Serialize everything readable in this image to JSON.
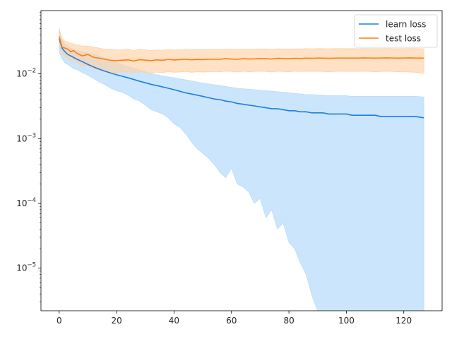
{
  "chart_data": {
    "type": "line",
    "title": "",
    "xlabel": "",
    "ylabel": "",
    "xlim": [
      -6.35,
      133.35
    ],
    "ylim": [
      2.2e-06,
      0.095
    ],
    "yscale": "log",
    "grid": false,
    "legend_position": "top-right",
    "x_ticks": [
      0,
      20,
      40,
      60,
      80,
      100,
      120
    ],
    "x_tick_labels": [
      "0",
      "20",
      "40",
      "60",
      "80",
      "100",
      "120"
    ],
    "y_ticks": [
      1e-05,
      0.0001,
      0.001,
      0.01
    ],
    "y_tick_labels": [
      {
        "base": "10",
        "exp": "−5"
      },
      {
        "base": "10",
        "exp": "−4"
      },
      {
        "base": "10",
        "exp": "−3"
      },
      {
        "base": "10",
        "exp": "−2"
      }
    ],
    "series": [
      {
        "name": "learn loss",
        "color": "#1f7fe0",
        "band_color": "#b9dcfc",
        "x": [
          0,
          1,
          2,
          3,
          4,
          5,
          6,
          8,
          10,
          12,
          14,
          16,
          18,
          20,
          22,
          24,
          26,
          28,
          30,
          32,
          34,
          36,
          38,
          40,
          42,
          44,
          46,
          48,
          50,
          52,
          54,
          56,
          58,
          60,
          62,
          64,
          66,
          68,
          70,
          72,
          74,
          76,
          78,
          80,
          82,
          84,
          86,
          88,
          90,
          92,
          94,
          96,
          98,
          100,
          102,
          104,
          106,
          108,
          110,
          112,
          114,
          116,
          118,
          120,
          122,
          124,
          127
        ],
        "y": [
          0.035,
          0.025,
          0.022,
          0.02,
          0.019,
          0.018,
          0.017,
          0.0155,
          0.014,
          0.0128,
          0.0118,
          0.011,
          0.0103,
          0.0097,
          0.0092,
          0.0087,
          0.0082,
          0.0077,
          0.0073,
          0.0069,
          0.0066,
          0.0063,
          0.006,
          0.0057,
          0.0054,
          0.0051,
          0.0049,
          0.0047,
          0.0045,
          0.0043,
          0.0041,
          0.004,
          0.0038,
          0.0037,
          0.0035,
          0.0034,
          0.0033,
          0.0032,
          0.0031,
          0.003,
          0.0029,
          0.0029,
          0.0028,
          0.0027,
          0.0027,
          0.0026,
          0.0026,
          0.0025,
          0.0025,
          0.0025,
          0.0024,
          0.0024,
          0.0024,
          0.0024,
          0.0023,
          0.0023,
          0.0023,
          0.0023,
          0.0023,
          0.0022,
          0.0022,
          0.0022,
          0.0022,
          0.0022,
          0.0022,
          0.0022,
          0.0021
        ],
        "upper": [
          0.05,
          0.033,
          0.029,
          0.027,
          0.025,
          0.024,
          0.023,
          0.022,
          0.021,
          0.02,
          0.019,
          0.0175,
          0.016,
          0.0148,
          0.0138,
          0.013,
          0.0122,
          0.0115,
          0.0108,
          0.0102,
          0.0097,
          0.0093,
          0.009,
          0.0087,
          0.0084,
          0.0081,
          0.0078,
          0.0075,
          0.0072,
          0.007,
          0.0068,
          0.0066,
          0.0064,
          0.0062,
          0.006,
          0.0059,
          0.0058,
          0.0057,
          0.0056,
          0.0055,
          0.0054,
          0.0053,
          0.0052,
          0.0051,
          0.005,
          0.0049,
          0.0048,
          0.0048,
          0.0047,
          0.0047,
          0.0046,
          0.0046,
          0.0046,
          0.0046,
          0.0045,
          0.0045,
          0.0045,
          0.0045,
          0.0045,
          0.0045,
          0.0045,
          0.0045,
          0.0045,
          0.0045,
          0.0045,
          0.0045,
          0.0044
        ],
        "lower": [
          0.022,
          0.017,
          0.015,
          0.014,
          0.013,
          0.012,
          0.0118,
          0.0105,
          0.0095,
          0.0085,
          0.0075,
          0.0068,
          0.006,
          0.0055,
          0.0052,
          0.0047,
          0.0041,
          0.0038,
          0.0033,
          0.0028,
          0.0026,
          0.0024,
          0.0021,
          0.0017,
          0.0015,
          0.0012,
          0.0009,
          0.0007,
          0.0006,
          0.0005,
          0.0004,
          0.0003,
          0.00025,
          0.00035,
          0.0002,
          0.00018,
          0.00015,
          0.0001,
          0.00012,
          6e-05,
          8e-05,
          4e-05,
          5e-05,
          2.5e-05,
          2e-05,
          1.2e-05,
          8e-06,
          3.8e-06,
          2.2e-06,
          2.2e-06,
          2.2e-06,
          2.2e-06,
          2.2e-06,
          2.2e-06,
          2.2e-06,
          2.2e-06,
          2.2e-06,
          2.2e-06,
          2.2e-06,
          2.2e-06,
          2.2e-06,
          2.2e-06,
          2.2e-06,
          2.2e-06,
          2.2e-06,
          2.2e-06,
          2.2e-06
        ]
      },
      {
        "name": "test loss",
        "color": "#ff7f0e",
        "band_color": "#ffd1a6",
        "x": [
          0,
          1,
          2,
          3,
          4,
          5,
          6,
          8,
          10,
          12,
          14,
          16,
          18,
          20,
          22,
          24,
          26,
          28,
          30,
          32,
          34,
          36,
          38,
          40,
          42,
          44,
          46,
          48,
          50,
          52,
          54,
          56,
          58,
          60,
          62,
          64,
          66,
          68,
          70,
          72,
          74,
          76,
          78,
          80,
          82,
          84,
          86,
          88,
          90,
          92,
          94,
          96,
          98,
          100,
          102,
          104,
          106,
          108,
          110,
          112,
          114,
          116,
          118,
          120,
          122,
          124,
          127
        ],
        "y": [
          0.038,
          0.026,
          0.025,
          0.024,
          0.022,
          0.023,
          0.021,
          0.019,
          0.02,
          0.018,
          0.0175,
          0.0168,
          0.0162,
          0.016,
          0.0163,
          0.0165,
          0.0158,
          0.0166,
          0.0163,
          0.016,
          0.0165,
          0.0162,
          0.0168,
          0.0164,
          0.0166,
          0.0168,
          0.0165,
          0.0167,
          0.0166,
          0.0168,
          0.0169,
          0.0168,
          0.0172,
          0.017,
          0.0168,
          0.0172,
          0.017,
          0.0171,
          0.0173,
          0.0172,
          0.017,
          0.0174,
          0.0173,
          0.0172,
          0.0174,
          0.0173,
          0.0175,
          0.0174,
          0.0176,
          0.0175,
          0.0174,
          0.0175,
          0.0176,
          0.0175,
          0.0176,
          0.0175,
          0.0177,
          0.0176,
          0.0175,
          0.0176,
          0.0177,
          0.0176,
          0.0175,
          0.0176,
          0.0177,
          0.0176,
          0.0175
        ],
        "upper": [
          0.05,
          0.035,
          0.032,
          0.031,
          0.03,
          0.029,
          0.028,
          0.027,
          0.027,
          0.026,
          0.025,
          0.024,
          0.024,
          0.0235,
          0.0235,
          0.024,
          0.023,
          0.024,
          0.0235,
          0.023,
          0.0235,
          0.0232,
          0.0238,
          0.0233,
          0.0236,
          0.0238,
          0.0235,
          0.0237,
          0.0236,
          0.0238,
          0.024,
          0.0238,
          0.0242,
          0.024,
          0.0238,
          0.0242,
          0.024,
          0.0241,
          0.0243,
          0.0242,
          0.024,
          0.0244,
          0.0243,
          0.0242,
          0.0244,
          0.0243,
          0.0245,
          0.0244,
          0.0246,
          0.0245,
          0.0244,
          0.0245,
          0.0246,
          0.0245,
          0.0246,
          0.0245,
          0.0247,
          0.0246,
          0.0245,
          0.0246,
          0.0247,
          0.0246,
          0.0245,
          0.0246,
          0.0247,
          0.0246,
          0.0245
        ],
        "lower": [
          0.03,
          0.02,
          0.019,
          0.018,
          0.016,
          0.017,
          0.015,
          0.0135,
          0.0135,
          0.012,
          0.0115,
          0.011,
          0.0105,
          0.0105,
          0.0107,
          0.0108,
          0.0103,
          0.0108,
          0.0106,
          0.0103,
          0.0107,
          0.0104,
          0.0109,
          0.0106,
          0.0107,
          0.0109,
          0.0106,
          0.0108,
          0.0107,
          0.0108,
          0.0109,
          0.0108,
          0.011,
          0.0109,
          0.0107,
          0.011,
          0.0108,
          0.0109,
          0.011,
          0.0109,
          0.0107,
          0.011,
          0.0109,
          0.0108,
          0.011,
          0.0109,
          0.011,
          0.0109,
          0.011,
          0.0109,
          0.0108,
          0.0109,
          0.011,
          0.0109,
          0.011,
          0.0109,
          0.011,
          0.0109,
          0.0108,
          0.0109,
          0.011,
          0.0109,
          0.0108,
          0.0108,
          0.0107,
          0.0106,
          0.0102
        ]
      }
    ]
  }
}
